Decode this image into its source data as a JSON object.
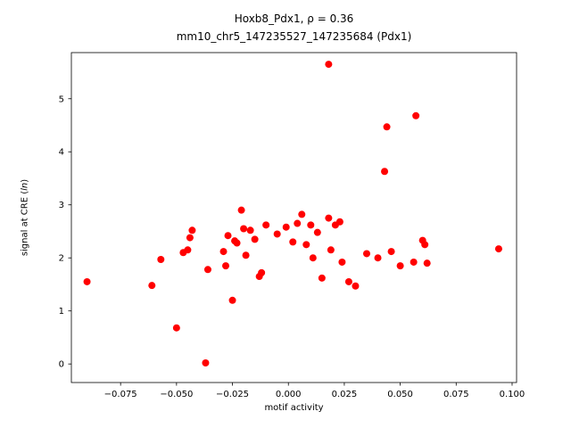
{
  "chart_data": {
    "type": "scatter",
    "title_line1": "Hoxb8_Pdx1, ρ = 0.36",
    "title_line2": "mm10_chr5_147235527_147235684 (Pdx1)",
    "xlabel": "motif activity",
    "ylabel_pre": "signal at CRE (",
    "ylabel_italic": "ln",
    "ylabel_post": ")",
    "xlim": [
      -0.097,
      0.102
    ],
    "ylim": [
      -0.35,
      5.87
    ],
    "xtick_values": [
      -0.075,
      -0.05,
      -0.025,
      0.0,
      0.025,
      0.05,
      0.075,
      0.1
    ],
    "xtick_labels": [
      "−0.075",
      "−0.050",
      "−0.025",
      "0.000",
      "0.025",
      "0.050",
      "0.075",
      "0.100"
    ],
    "ytick_values": [
      0,
      1,
      2,
      3,
      4,
      5
    ],
    "ytick_labels": [
      "0",
      "1",
      "2",
      "3",
      "4",
      "5"
    ],
    "grid": false,
    "legend": "none",
    "marker_color": "#ff0000",
    "marker_radius": 4,
    "points": [
      [
        -0.09,
        1.55
      ],
      [
        -0.061,
        1.48
      ],
      [
        -0.057,
        1.97
      ],
      [
        -0.05,
        0.68
      ],
      [
        -0.047,
        2.1
      ],
      [
        -0.045,
        2.15
      ],
      [
        -0.044,
        2.38
      ],
      [
        -0.043,
        2.52
      ],
      [
        -0.037,
        0.02
      ],
      [
        -0.036,
        1.78
      ],
      [
        -0.029,
        2.12
      ],
      [
        -0.028,
        1.85
      ],
      [
        -0.027,
        2.42
      ],
      [
        -0.025,
        1.2
      ],
      [
        -0.024,
        2.32
      ],
      [
        -0.023,
        2.28
      ],
      [
        -0.021,
        2.9
      ],
      [
        -0.02,
        2.55
      ],
      [
        -0.019,
        2.05
      ],
      [
        -0.017,
        2.52
      ],
      [
        -0.015,
        2.35
      ],
      [
        -0.013,
        1.65
      ],
      [
        -0.012,
        1.72
      ],
      [
        -0.01,
        2.62
      ],
      [
        -0.005,
        2.45
      ],
      [
        -0.001,
        2.58
      ],
      [
        0.002,
        2.3
      ],
      [
        0.004,
        2.65
      ],
      [
        0.006,
        2.82
      ],
      [
        0.008,
        2.25
      ],
      [
        0.01,
        2.62
      ],
      [
        0.011,
        2.0
      ],
      [
        0.013,
        2.48
      ],
      [
        0.015,
        1.62
      ],
      [
        0.018,
        5.65
      ],
      [
        0.018,
        2.75
      ],
      [
        0.019,
        2.15
      ],
      [
        0.021,
        2.62
      ],
      [
        0.023,
        2.68
      ],
      [
        0.024,
        1.92
      ],
      [
        0.027,
        1.55
      ],
      [
        0.03,
        1.47
      ],
      [
        0.035,
        2.08
      ],
      [
        0.04,
        2.0
      ],
      [
        0.043,
        3.63
      ],
      [
        0.044,
        4.47
      ],
      [
        0.046,
        2.12
      ],
      [
        0.05,
        1.85
      ],
      [
        0.056,
        1.92
      ],
      [
        0.057,
        4.68
      ],
      [
        0.06,
        2.33
      ],
      [
        0.061,
        2.25
      ],
      [
        0.062,
        1.9
      ],
      [
        0.094,
        2.17
      ]
    ]
  }
}
